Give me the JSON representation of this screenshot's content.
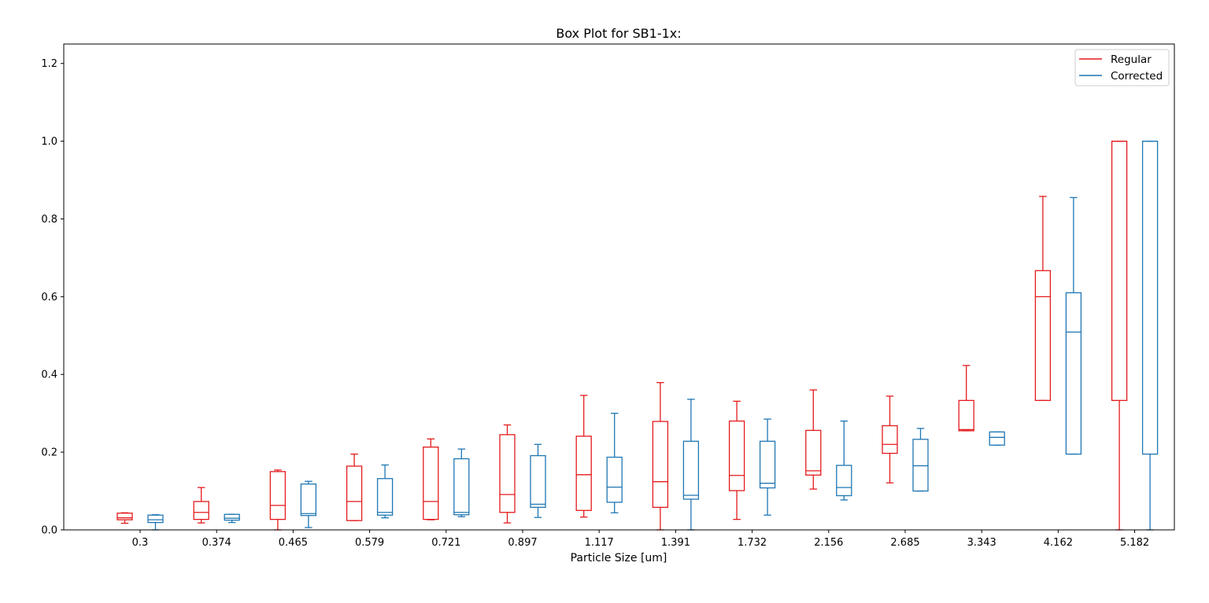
{
  "chart_data": {
    "type": "box",
    "title": "Box Plot for SB1-1x:",
    "xlabel": "Particle Size [um]",
    "ylabel": "",
    "ylim": [
      0,
      1.25
    ],
    "yticks": [
      "0.0",
      "0.2",
      "0.4",
      "0.6",
      "0.8",
      "1.0",
      "1.2"
    ],
    "categories": [
      "0.3",
      "0.374",
      "0.465",
      "0.579",
      "0.721",
      "0.897",
      "1.117",
      "1.391",
      "1.732",
      "2.156",
      "2.685",
      "3.343",
      "4.162",
      "5.182"
    ],
    "legend_position": "top-right",
    "grid": false,
    "series": [
      {
        "name": "Regular",
        "color": "#e41a1c",
        "boxes": [
          {
            "whislo": 0.017,
            "q1": 0.026,
            "med": 0.031,
            "q3": 0.043,
            "whishi": 0.044
          },
          {
            "whislo": 0.018,
            "q1": 0.027,
            "med": 0.045,
            "q3": 0.073,
            "whishi": 0.109
          },
          {
            "whislo": 0.0,
            "q1": 0.027,
            "med": 0.063,
            "q3": 0.15,
            "whishi": 0.154
          },
          {
            "whislo": 0.024,
            "q1": 0.024,
            "med": 0.073,
            "q3": 0.164,
            "whishi": 0.195
          },
          {
            "whislo": 0.026,
            "q1": 0.027,
            "med": 0.073,
            "q3": 0.213,
            "whishi": 0.234
          },
          {
            "whislo": 0.018,
            "q1": 0.045,
            "med": 0.091,
            "q3": 0.245,
            "whishi": 0.27
          },
          {
            "whislo": 0.033,
            "q1": 0.05,
            "med": 0.142,
            "q3": 0.241,
            "whishi": 0.346
          },
          {
            "whislo": 0.0,
            "q1": 0.058,
            "med": 0.124,
            "q3": 0.279,
            "whishi": 0.379
          },
          {
            "whislo": 0.027,
            "q1": 0.101,
            "med": 0.14,
            "q3": 0.28,
            "whishi": 0.331
          },
          {
            "whislo": 0.105,
            "q1": 0.141,
            "med": 0.152,
            "q3": 0.256,
            "whishi": 0.36
          },
          {
            "whislo": 0.121,
            "q1": 0.197,
            "med": 0.22,
            "q3": 0.268,
            "whishi": 0.344
          },
          {
            "whislo": 0.255,
            "q1": 0.255,
            "med": 0.258,
            "q3": 0.333,
            "whishi": 0.423
          },
          {
            "whislo": 0.333,
            "q1": 0.333,
            "med": 0.6,
            "q3": 0.667,
            "whishi": 0.858
          },
          {
            "whislo": 0.0,
            "q1": 0.333,
            "med": 1.0,
            "q3": 1.0,
            "whishi": 1.0
          }
        ]
      },
      {
        "name": "Corrected",
        "color": "#1f77b4",
        "boxes": [
          {
            "whislo": 0.0,
            "q1": 0.019,
            "med": 0.026,
            "q3": 0.038,
            "whishi": 0.039
          },
          {
            "whislo": 0.019,
            "q1": 0.025,
            "med": 0.03,
            "q3": 0.04,
            "whishi": 0.04
          },
          {
            "whislo": 0.006,
            "q1": 0.037,
            "med": 0.042,
            "q3": 0.118,
            "whishi": 0.125
          },
          {
            "whislo": 0.031,
            "q1": 0.038,
            "med": 0.045,
            "q3": 0.132,
            "whishi": 0.167
          },
          {
            "whislo": 0.034,
            "q1": 0.039,
            "med": 0.045,
            "q3": 0.183,
            "whishi": 0.208
          },
          {
            "whislo": 0.032,
            "q1": 0.058,
            "med": 0.066,
            "q3": 0.191,
            "whishi": 0.22
          },
          {
            "whislo": 0.044,
            "q1": 0.071,
            "med": 0.11,
            "q3": 0.187,
            "whishi": 0.3
          },
          {
            "whislo": 0.0,
            "q1": 0.079,
            "med": 0.089,
            "q3": 0.228,
            "whishi": 0.336
          },
          {
            "whislo": 0.038,
            "q1": 0.108,
            "med": 0.12,
            "q3": 0.228,
            "whishi": 0.285
          },
          {
            "whislo": 0.077,
            "q1": 0.088,
            "med": 0.109,
            "q3": 0.166,
            "whishi": 0.28
          },
          {
            "whislo": 0.1,
            "q1": 0.1,
            "med": 0.165,
            "q3": 0.233,
            "whishi": 0.261
          },
          {
            "whislo": 0.218,
            "q1": 0.218,
            "med": 0.238,
            "q3": 0.252,
            "whishi": 0.252
          },
          {
            "whislo": 0.195,
            "q1": 0.195,
            "med": 0.509,
            "q3": 0.61,
            "whishi": 0.855
          },
          {
            "whislo": 0.0,
            "q1": 0.195,
            "med": 1.0,
            "q3": 1.0,
            "whishi": 1.0
          }
        ]
      }
    ]
  }
}
